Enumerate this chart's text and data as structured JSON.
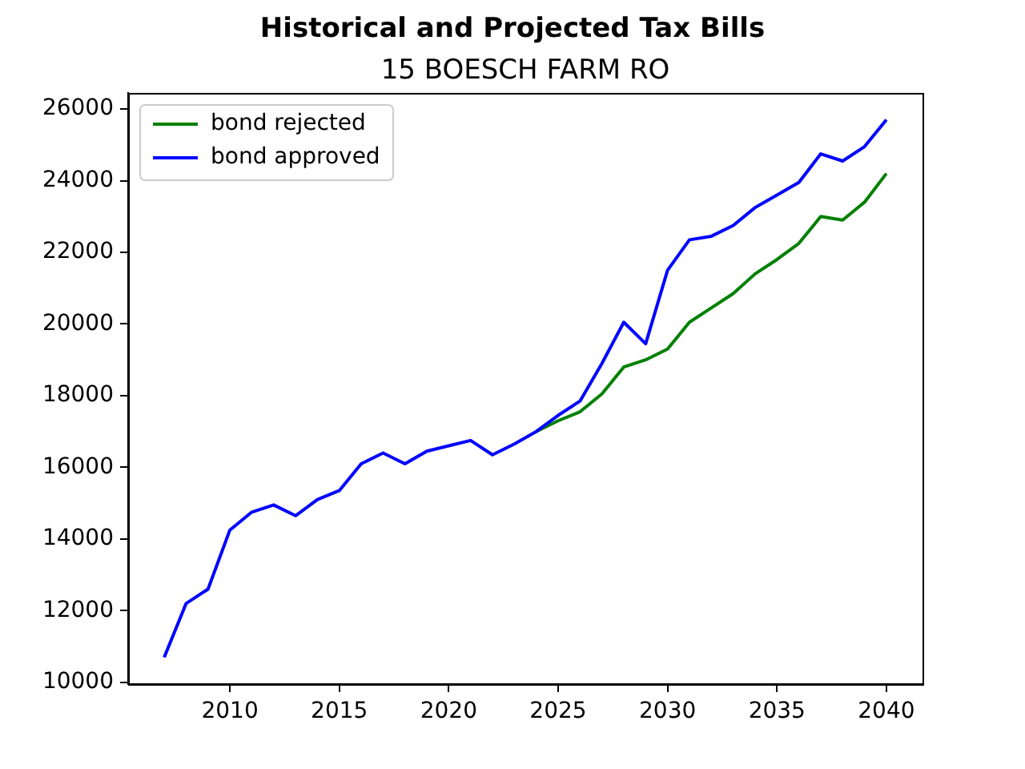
{
  "chart_data": {
    "type": "line",
    "title": "Historical and Projected Tax Bills",
    "subtitle": "15 BOESCH FARM RO",
    "x": [
      2007,
      2008,
      2009,
      2010,
      2011,
      2012,
      2013,
      2014,
      2015,
      2016,
      2017,
      2018,
      2019,
      2020,
      2021,
      2022,
      2023,
      2024,
      2025,
      2026,
      2027,
      2028,
      2029,
      2030,
      2031,
      2032,
      2033,
      2034,
      2035,
      2036,
      2037,
      2038,
      2039,
      2040
    ],
    "series": [
      {
        "name": "bond rejected",
        "color": "#008000",
        "values": [
          null,
          null,
          null,
          null,
          null,
          null,
          null,
          null,
          null,
          null,
          null,
          null,
          null,
          null,
          null,
          null,
          null,
          17000,
          17300,
          17550,
          18050,
          18800,
          19000,
          19300,
          20050,
          20450,
          20850,
          21400,
          21800,
          22250,
          23000,
          22900,
          23400,
          24200
        ]
      },
      {
        "name": "bond approved",
        "color": "#0000ff",
        "values": [
          10700,
          12200,
          12600,
          14250,
          14750,
          14950,
          14650,
          15100,
          15350,
          16100,
          16400,
          16100,
          16450,
          16600,
          16750,
          16350,
          16650,
          17000,
          17450,
          17850,
          18900,
          20050,
          19450,
          21500,
          22350,
          22450,
          22750,
          23250,
          23600,
          23950,
          24750,
          24550,
          24950,
          25700
        ]
      }
    ],
    "xlim": [
      2005.35,
      2041.65
    ],
    "xticks": [
      2010,
      2015,
      2020,
      2025,
      2030,
      2035,
      2040
    ],
    "ylim": [
      9950,
      26450
    ],
    "yticks": [
      10000,
      12000,
      14000,
      16000,
      18000,
      20000,
      22000,
      24000,
      26000
    ],
    "grid": false,
    "legend": "top left"
  }
}
